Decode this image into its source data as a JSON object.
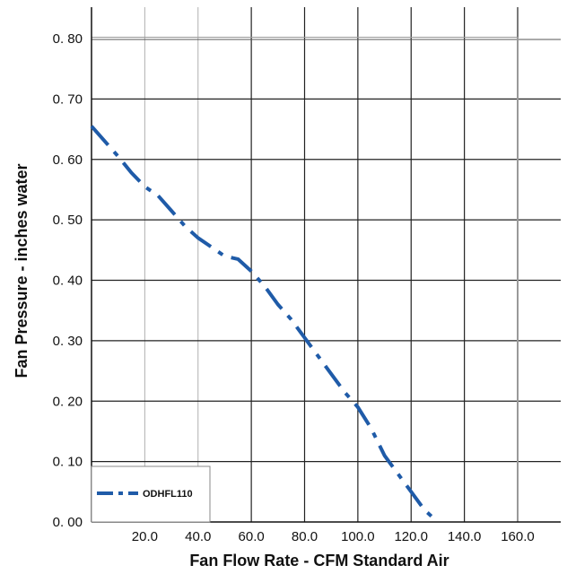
{
  "chart_data": {
    "type": "line",
    "xlabel": "Fan Flow Rate - CFM Standard Air",
    "ylabel": "Fan Pressure - inches water",
    "xlim": [
      0,
      160
    ],
    "ylim": [
      0,
      0.8
    ],
    "grid": true,
    "legend_position": "bottom-left",
    "x_ticks": [
      {
        "value": 20,
        "label": "20.0"
      },
      {
        "value": 40,
        "label": "40.0"
      },
      {
        "value": 60,
        "label": "60.0"
      },
      {
        "value": 80,
        "label": "80.0"
      },
      {
        "value": 100,
        "label": "100.0"
      },
      {
        "value": 120,
        "label": "120.0"
      },
      {
        "value": 140,
        "label": "140.0"
      },
      {
        "value": 160,
        "label": "160.0"
      }
    ],
    "y_ticks": [
      {
        "value": 0.0,
        "label": "0. 00"
      },
      {
        "value": 0.1,
        "label": "0. 10"
      },
      {
        "value": 0.2,
        "label": "0. 20"
      },
      {
        "value": 0.3,
        "label": "0. 30"
      },
      {
        "value": 0.4,
        "label": "0. 40"
      },
      {
        "value": 0.5,
        "label": "0. 50"
      },
      {
        "value": 0.6,
        "label": "0. 60"
      },
      {
        "value": 0.7,
        "label": "0. 70"
      },
      {
        "value": 0.8,
        "label": "0. 80"
      }
    ],
    "series": [
      {
        "name": "ODHFL110",
        "color": "#1f5ba8",
        "line_style": "dash-dot",
        "x": [
          0,
          10,
          15,
          20,
          25,
          30,
          35,
          40,
          45,
          50,
          55,
          60,
          65,
          70,
          75,
          80,
          85,
          90,
          95,
          100,
          105,
          110,
          115,
          120,
          125,
          130
        ],
        "y": [
          0.655,
          0.605,
          0.578,
          0.555,
          0.54,
          0.515,
          0.49,
          0.47,
          0.455,
          0.44,
          0.435,
          0.415,
          0.39,
          0.36,
          0.335,
          0.305,
          0.275,
          0.245,
          0.215,
          0.19,
          0.155,
          0.11,
          0.08,
          0.05,
          0.02,
          0.0
        ]
      }
    ]
  }
}
